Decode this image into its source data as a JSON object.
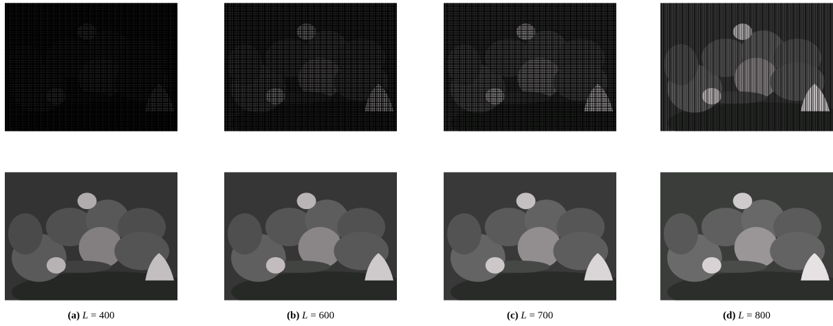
{
  "captions": [
    {
      "tag": "(a)",
      "variable": "L",
      "value": "= 400"
    },
    {
      "tag": "(b)",
      "variable": "L",
      "value": "= 600"
    },
    {
      "tag": "(c)",
      "variable": "L",
      "value": "= 700"
    },
    {
      "tag": "(d)",
      "variable": "L",
      "value": "= 800"
    }
  ]
}
